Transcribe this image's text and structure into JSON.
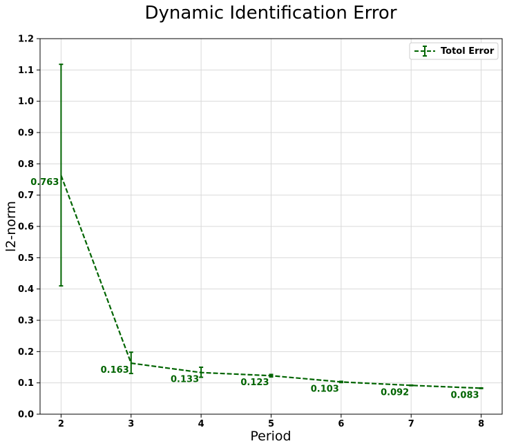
{
  "chart_data": {
    "type": "line",
    "title": "Dynamic Identification Error",
    "xlabel": "Period",
    "ylabel": "l2-norm",
    "x": [
      2,
      3,
      4,
      5,
      6,
      7,
      8
    ],
    "xlim": [
      1.7,
      8.3
    ],
    "ylim": [
      0,
      1.2
    ],
    "xticks": [
      2,
      3,
      4,
      5,
      6,
      7,
      8
    ],
    "yticks": [
      0.0,
      0.1,
      0.2,
      0.3,
      0.4,
      0.5,
      0.6,
      0.7,
      0.8,
      0.9,
      1.0,
      1.1,
      1.2
    ],
    "grid": true,
    "legend_position": "top-right",
    "series": [
      {
        "name": "Totol Error",
        "color": "#006400",
        "line_style": "dashed",
        "values": [
          0.763,
          0.163,
          0.133,
          0.123,
          0.103,
          0.092,
          0.083
        ],
        "error_low": [
          0.41,
          0.13,
          0.118,
          0.119,
          0.101,
          0.091,
          0.082
        ],
        "error_high": [
          1.118,
          0.198,
          0.15,
          0.127,
          0.105,
          0.093,
          0.084
        ],
        "data_labels": [
          "0.763",
          "0.163",
          "0.133",
          "0.123",
          "0.103",
          "0.092",
          "0.083"
        ]
      }
    ]
  }
}
